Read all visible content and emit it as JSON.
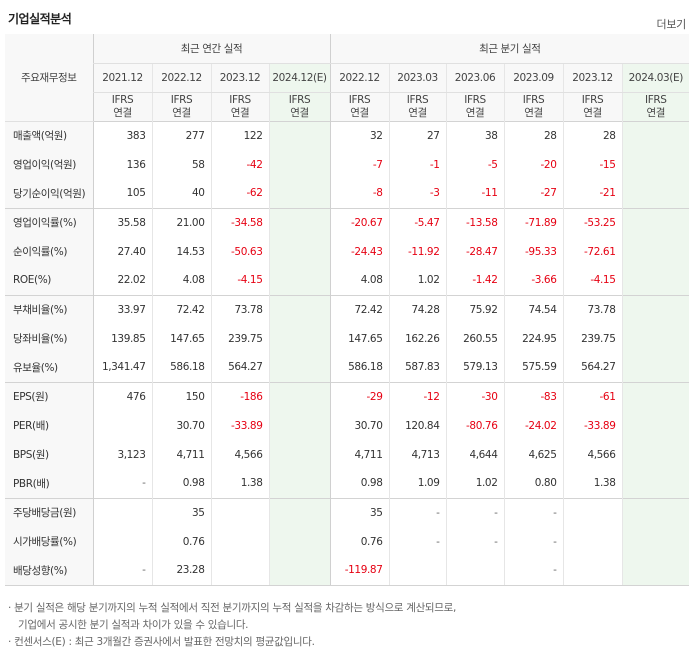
{
  "title": "기업실적분석",
  "more_label": "더보기",
  "row_header": "주요재무정보",
  "groups": {
    "annual": "최근 연간 실적",
    "quarter": "최근 분기 실적"
  },
  "dates": [
    "2021.12",
    "2022.12",
    "2023.12",
    "2024.12(E)",
    "2022.12",
    "2023.03",
    "2023.06",
    "2023.09",
    "2023.12",
    "2024.03(E)"
  ],
  "ifrs": {
    "top": "IFRS",
    "bottom": "연결"
  },
  "rows": [
    {
      "label": "매출액(억원)",
      "values": [
        "383",
        "277",
        "122",
        "",
        "32",
        "27",
        "38",
        "28",
        "28",
        ""
      ]
    },
    {
      "label": "영업이익(억원)",
      "values": [
        "136",
        "58",
        "-42",
        "",
        "-7",
        "-1",
        "-5",
        "-20",
        "-15",
        ""
      ]
    },
    {
      "label": "당기순이익(억원)",
      "values": [
        "105",
        "40",
        "-62",
        "",
        "-8",
        "-3",
        "-11",
        "-27",
        "-21",
        ""
      ]
    },
    {
      "label": "영업이익률(%)",
      "values": [
        "35.58",
        "21.00",
        "-34.58",
        "",
        "-20.67",
        "-5.47",
        "-13.58",
        "-71.89",
        "-53.25",
        ""
      ]
    },
    {
      "label": "순이익률(%)",
      "values": [
        "27.40",
        "14.53",
        "-50.63",
        "",
        "-24.43",
        "-11.92",
        "-28.47",
        "-95.33",
        "-72.61",
        ""
      ]
    },
    {
      "label": "ROE(%)",
      "values": [
        "22.02",
        "4.08",
        "-4.15",
        "",
        "4.08",
        "1.02",
        "-1.42",
        "-3.66",
        "-4.15",
        ""
      ]
    },
    {
      "label": "부채비율(%)",
      "values": [
        "33.97",
        "72.42",
        "73.78",
        "",
        "72.42",
        "74.28",
        "75.92",
        "74.54",
        "73.78",
        ""
      ]
    },
    {
      "label": "당좌비율(%)",
      "values": [
        "139.85",
        "147.65",
        "239.75",
        "",
        "147.65",
        "162.26",
        "260.55",
        "224.95",
        "239.75",
        ""
      ]
    },
    {
      "label": "유보율(%)",
      "values": [
        "1,341.47",
        "586.18",
        "564.27",
        "",
        "586.18",
        "587.83",
        "579.13",
        "575.59",
        "564.27",
        ""
      ]
    },
    {
      "label": "EPS(원)",
      "values": [
        "476",
        "150",
        "-186",
        "",
        "-29",
        "-12",
        "-30",
        "-83",
        "-61",
        ""
      ]
    },
    {
      "label": "PER(배)",
      "values": [
        "",
        "30.70",
        "-33.89",
        "",
        "30.70",
        "120.84",
        "-80.76",
        "-24.02",
        "-33.89",
        ""
      ]
    },
    {
      "label": "BPS(원)",
      "values": [
        "3,123",
        "4,711",
        "4,566",
        "",
        "4,711",
        "4,713",
        "4,644",
        "4,625",
        "4,566",
        ""
      ]
    },
    {
      "label": "PBR(배)",
      "values": [
        "-",
        "0.98",
        "1.38",
        "",
        "0.98",
        "1.09",
        "1.02",
        "0.80",
        "1.38",
        ""
      ]
    },
    {
      "label": "주당배당금(원)",
      "values": [
        "",
        "35",
        "",
        "",
        "35",
        "-",
        "-",
        "-",
        "",
        ""
      ]
    },
    {
      "label": "시가배당률(%)",
      "values": [
        "",
        "0.76",
        "",
        "",
        "0.76",
        "-",
        "-",
        "-",
        "",
        ""
      ]
    },
    {
      "label": "배당성향(%)",
      "values": [
        "-",
        "23.28",
        "",
        "",
        "-119.87",
        "",
        "",
        "-",
        "",
        ""
      ]
    }
  ],
  "notes": {
    "line1": "· 분기 실적은 해당 분기까지의 누적 실적에서 직전 분기까지의 누적 실적을 차감하는 방식으로 계산되므로,",
    "line2": "기업에서 공시한 분기 실적과 차이가 있을 수 있습니다.",
    "line3": "· 컨센서스(E) : 최근 3개월간 증권사에서 발표한 전망치의 평균값입니다."
  },
  "colors": {
    "negative": "#e60012",
    "ifrs": "#e46d1b",
    "estimate_bg": "#eef7ee"
  }
}
